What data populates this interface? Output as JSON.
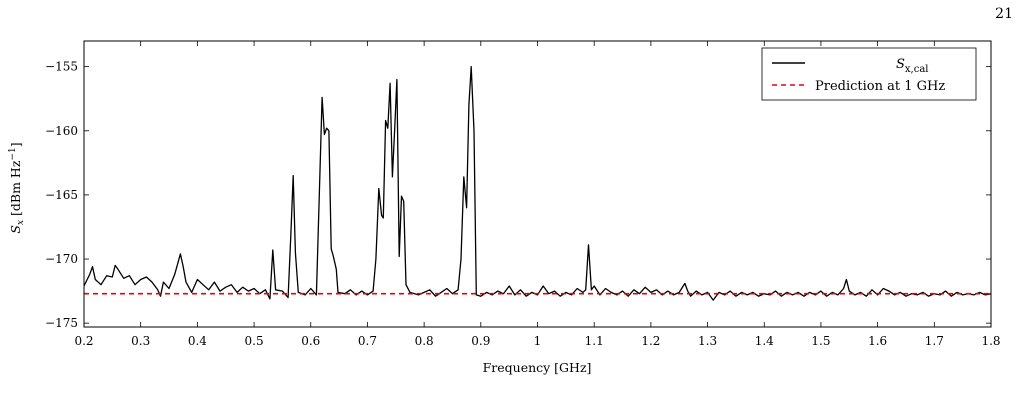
{
  "page": {
    "number": "21"
  },
  "chart_data": {
    "type": "line",
    "xlabel": "Frequency [GHz]",
    "ylabel": "S_x [dBm Hz^-1]",
    "ylabel_parts": {
      "main": "S",
      "sub": "x",
      "unit": "[dBm Hz",
      "exp": "−1",
      "close": "]"
    },
    "xlim": [
      0.2,
      1.8
    ],
    "ylim": [
      -175.3,
      -153
    ],
    "xticks": [
      0.2,
      0.3,
      0.4,
      0.5,
      0.6,
      0.7,
      0.8,
      0.9,
      1.0,
      1.1,
      1.2,
      1.3,
      1.4,
      1.5,
      1.6,
      1.7,
      1.8
    ],
    "xtick_labels": [
      "0.2",
      "0.3",
      "0.4",
      "0.5",
      "0.6",
      "0.7",
      "0.8",
      "0.9",
      "1",
      "1.1",
      "1.2",
      "1.3",
      "1.4",
      "1.5",
      "1.6",
      "1.7",
      "1.8"
    ],
    "yticks": [
      -175,
      -170,
      -165,
      -160,
      -155
    ],
    "ytick_labels": [
      "−175",
      "−170",
      "−165",
      "−160",
      "−155"
    ],
    "grid": false,
    "legend_position": "top-right",
    "series": [
      {
        "name": "S_x,cal",
        "label_main": "S",
        "label_sub": "x,cal",
        "color": "#000000",
        "style": "solid",
        "points": [
          [
            0.2,
            -172.1
          ],
          [
            0.21,
            -171.2
          ],
          [
            0.215,
            -170.6
          ],
          [
            0.22,
            -171.6
          ],
          [
            0.23,
            -172.0
          ],
          [
            0.24,
            -171.3
          ],
          [
            0.25,
            -171.4
          ],
          [
            0.255,
            -170.5
          ],
          [
            0.26,
            -170.8
          ],
          [
            0.27,
            -171.5
          ],
          [
            0.28,
            -171.3
          ],
          [
            0.29,
            -172.0
          ],
          [
            0.3,
            -171.6
          ],
          [
            0.31,
            -171.4
          ],
          [
            0.32,
            -171.8
          ],
          [
            0.33,
            -172.4
          ],
          [
            0.335,
            -172.9
          ],
          [
            0.34,
            -171.8
          ],
          [
            0.35,
            -172.3
          ],
          [
            0.36,
            -171.2
          ],
          [
            0.37,
            -169.6
          ],
          [
            0.375,
            -170.6
          ],
          [
            0.38,
            -171.8
          ],
          [
            0.39,
            -172.6
          ],
          [
            0.4,
            -171.6
          ],
          [
            0.41,
            -172.0
          ],
          [
            0.42,
            -172.4
          ],
          [
            0.43,
            -171.8
          ],
          [
            0.44,
            -172.5
          ],
          [
            0.45,
            -172.2
          ],
          [
            0.46,
            -172.0
          ],
          [
            0.47,
            -172.6
          ],
          [
            0.48,
            -172.2
          ],
          [
            0.49,
            -172.5
          ],
          [
            0.5,
            -172.3
          ],
          [
            0.51,
            -172.7
          ],
          [
            0.52,
            -172.4
          ],
          [
            0.528,
            -173.1
          ],
          [
            0.533,
            -169.3
          ],
          [
            0.538,
            -172.4
          ],
          [
            0.55,
            -172.5
          ],
          [
            0.56,
            -173.0
          ],
          [
            0.565,
            -168.0
          ],
          [
            0.569,
            -163.5
          ],
          [
            0.573,
            -169.5
          ],
          [
            0.578,
            -172.6
          ],
          [
            0.59,
            -172.8
          ],
          [
            0.6,
            -172.3
          ],
          [
            0.61,
            -172.8
          ],
          [
            0.615,
            -165.0
          ],
          [
            0.62,
            -157.4
          ],
          [
            0.624,
            -160.3
          ],
          [
            0.628,
            -159.8
          ],
          [
            0.632,
            -160.0
          ],
          [
            0.636,
            -169.2
          ],
          [
            0.64,
            -169.8
          ],
          [
            0.645,
            -170.8
          ],
          [
            0.648,
            -172.6
          ],
          [
            0.66,
            -172.7
          ],
          [
            0.67,
            -172.4
          ],
          [
            0.68,
            -172.8
          ],
          [
            0.69,
            -172.5
          ],
          [
            0.7,
            -172.8
          ],
          [
            0.71,
            -172.5
          ],
          [
            0.715,
            -170.0
          ],
          [
            0.72,
            -164.5
          ],
          [
            0.725,
            -166.6
          ],
          [
            0.728,
            -166.8
          ],
          [
            0.732,
            -159.2
          ],
          [
            0.736,
            -159.8
          ],
          [
            0.74,
            -156.3
          ],
          [
            0.744,
            -163.6
          ],
          [
            0.748,
            -160.0
          ],
          [
            0.752,
            -156.0
          ],
          [
            0.756,
            -169.8
          ],
          [
            0.76,
            -165.1
          ],
          [
            0.764,
            -165.5
          ],
          [
            0.768,
            -172.0
          ],
          [
            0.775,
            -172.6
          ],
          [
            0.79,
            -172.8
          ],
          [
            0.8,
            -172.6
          ],
          [
            0.81,
            -172.4
          ],
          [
            0.82,
            -172.9
          ],
          [
            0.83,
            -172.6
          ],
          [
            0.84,
            -172.3
          ],
          [
            0.85,
            -172.7
          ],
          [
            0.86,
            -172.4
          ],
          [
            0.865,
            -170.0
          ],
          [
            0.87,
            -163.6
          ],
          [
            0.875,
            -166.0
          ],
          [
            0.879,
            -158.0
          ],
          [
            0.883,
            -155.0
          ],
          [
            0.888,
            -160.0
          ],
          [
            0.892,
            -172.8
          ],
          [
            0.9,
            -172.9
          ],
          [
            0.91,
            -172.6
          ],
          [
            0.92,
            -172.8
          ],
          [
            0.93,
            -172.5
          ],
          [
            0.94,
            -172.7
          ],
          [
            0.95,
            -172.1
          ],
          [
            0.96,
            -172.8
          ],
          [
            0.97,
            -172.4
          ],
          [
            0.98,
            -172.9
          ],
          [
            0.99,
            -172.6
          ],
          [
            1.0,
            -172.8
          ],
          [
            1.01,
            -172.1
          ],
          [
            1.02,
            -172.7
          ],
          [
            1.03,
            -172.5
          ],
          [
            1.04,
            -172.9
          ],
          [
            1.05,
            -172.6
          ],
          [
            1.06,
            -172.8
          ],
          [
            1.07,
            -172.3
          ],
          [
            1.08,
            -172.6
          ],
          [
            1.085,
            -172.4
          ],
          [
            1.09,
            -168.9
          ],
          [
            1.095,
            -172.4
          ],
          [
            1.1,
            -172.1
          ],
          [
            1.11,
            -172.8
          ],
          [
            1.12,
            -172.3
          ],
          [
            1.13,
            -172.6
          ],
          [
            1.14,
            -172.8
          ],
          [
            1.15,
            -172.5
          ],
          [
            1.16,
            -172.9
          ],
          [
            1.17,
            -172.4
          ],
          [
            1.18,
            -172.7
          ],
          [
            1.19,
            -172.2
          ],
          [
            1.2,
            -172.6
          ],
          [
            1.21,
            -172.4
          ],
          [
            1.22,
            -172.8
          ],
          [
            1.23,
            -172.5
          ],
          [
            1.24,
            -172.8
          ],
          [
            1.25,
            -172.6
          ],
          [
            1.26,
            -171.9
          ],
          [
            1.265,
            -172.5
          ],
          [
            1.27,
            -172.9
          ],
          [
            1.28,
            -172.5
          ],
          [
            1.29,
            -172.8
          ],
          [
            1.3,
            -172.6
          ],
          [
            1.31,
            -173.2
          ],
          [
            1.32,
            -172.6
          ],
          [
            1.33,
            -172.8
          ],
          [
            1.34,
            -172.5
          ],
          [
            1.35,
            -172.9
          ],
          [
            1.36,
            -172.6
          ],
          [
            1.37,
            -172.8
          ],
          [
            1.38,
            -172.6
          ],
          [
            1.39,
            -172.9
          ],
          [
            1.4,
            -172.7
          ],
          [
            1.41,
            -172.8
          ],
          [
            1.42,
            -172.5
          ],
          [
            1.43,
            -172.9
          ],
          [
            1.44,
            -172.6
          ],
          [
            1.45,
            -172.8
          ],
          [
            1.46,
            -172.6
          ],
          [
            1.47,
            -172.9
          ],
          [
            1.48,
            -172.6
          ],
          [
            1.49,
            -172.8
          ],
          [
            1.5,
            -172.5
          ],
          [
            1.51,
            -172.9
          ],
          [
            1.52,
            -172.6
          ],
          [
            1.53,
            -172.8
          ],
          [
            1.54,
            -172.3
          ],
          [
            1.545,
            -171.6
          ],
          [
            1.55,
            -172.5
          ],
          [
            1.56,
            -172.8
          ],
          [
            1.57,
            -172.6
          ],
          [
            1.58,
            -172.9
          ],
          [
            1.59,
            -172.4
          ],
          [
            1.6,
            -172.8
          ],
          [
            1.61,
            -172.3
          ],
          [
            1.62,
            -172.5
          ],
          [
            1.63,
            -172.8
          ],
          [
            1.64,
            -172.6
          ],
          [
            1.65,
            -172.9
          ],
          [
            1.66,
            -172.7
          ],
          [
            1.67,
            -172.8
          ],
          [
            1.68,
            -172.6
          ],
          [
            1.69,
            -172.9
          ],
          [
            1.7,
            -172.7
          ],
          [
            1.71,
            -172.8
          ],
          [
            1.72,
            -172.5
          ],
          [
            1.73,
            -172.9
          ],
          [
            1.74,
            -172.6
          ],
          [
            1.75,
            -172.8
          ],
          [
            1.76,
            -172.7
          ],
          [
            1.77,
            -172.8
          ],
          [
            1.78,
            -172.6
          ],
          [
            1.79,
            -172.8
          ],
          [
            1.8,
            -172.7
          ]
        ]
      },
      {
        "name": "Prediction at 1 GHz",
        "color": "#e8000b",
        "style": "dashed",
        "points": [
          [
            0.2,
            -172.7
          ],
          [
            1.8,
            -172.7
          ]
        ]
      }
    ]
  }
}
